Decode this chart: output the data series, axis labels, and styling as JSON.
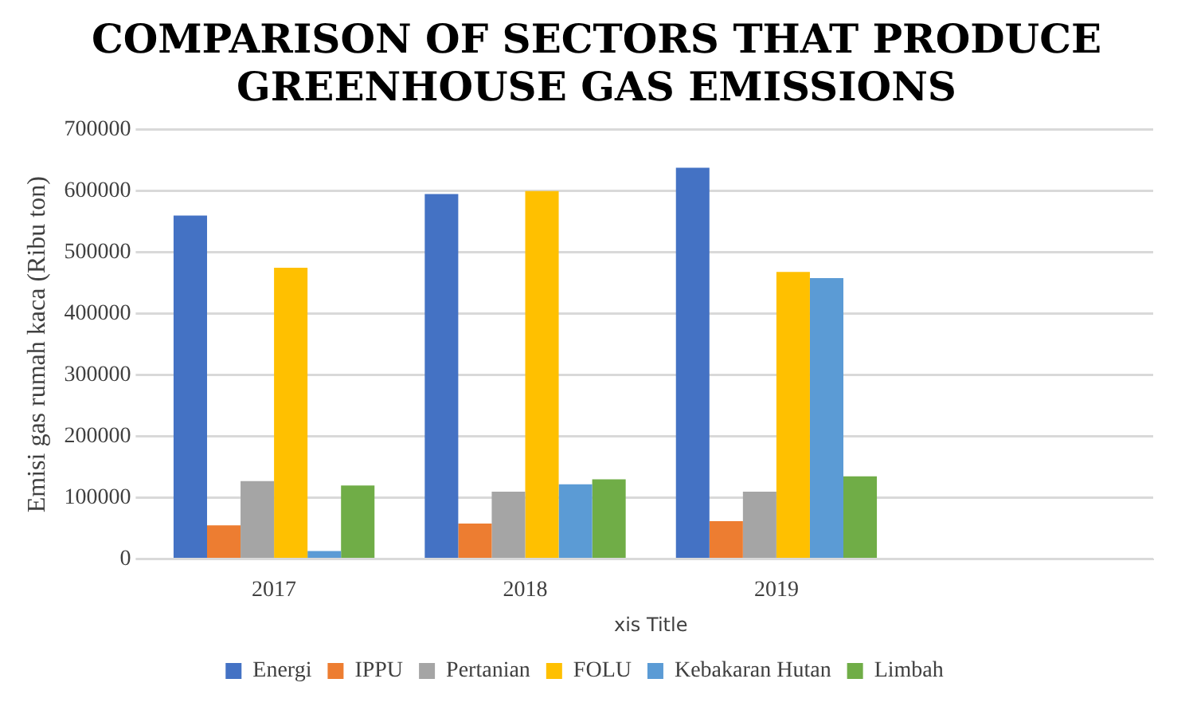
{
  "chart_data": {
    "type": "bar",
    "title": "COMPARISON OF SECTORS THAT PRODUCE GREENHOUSE GAS EMISSIONS",
    "xlabel": "xis Title",
    "ylabel": "Emisi gas rumah kaca (Ribu ton)",
    "categories": [
      "2017",
      "2018",
      "2019",
      null
    ],
    "series": [
      {
        "name": "Energi",
        "color": "#4472c4",
        "values": [
          560000,
          595000,
          638000,
          null
        ]
      },
      {
        "name": "IPPU",
        "color": "#ed7d31",
        "values": [
          55000,
          58000,
          62000,
          null
        ]
      },
      {
        "name": "Pertanian",
        "color": "#a5a5a5",
        "values": [
          127000,
          110000,
          110000,
          null
        ]
      },
      {
        "name": "FOLU",
        "color": "#ffc000",
        "values": [
          475000,
          600000,
          468000,
          null
        ]
      },
      {
        "name": "Kebakaran Hutan",
        "color": "#5b9bd5",
        "values": [
          13000,
          122000,
          458000,
          null
        ]
      },
      {
        "name": "Limbah",
        "color": "#70ad47",
        "values": [
          120000,
          130000,
          135000,
          null
        ]
      }
    ],
    "ylim": [
      0,
      700000
    ],
    "yticks": [
      0,
      100000,
      200000,
      300000,
      400000,
      500000,
      600000,
      700000
    ],
    "grid": "y",
    "legend": "bottom"
  }
}
